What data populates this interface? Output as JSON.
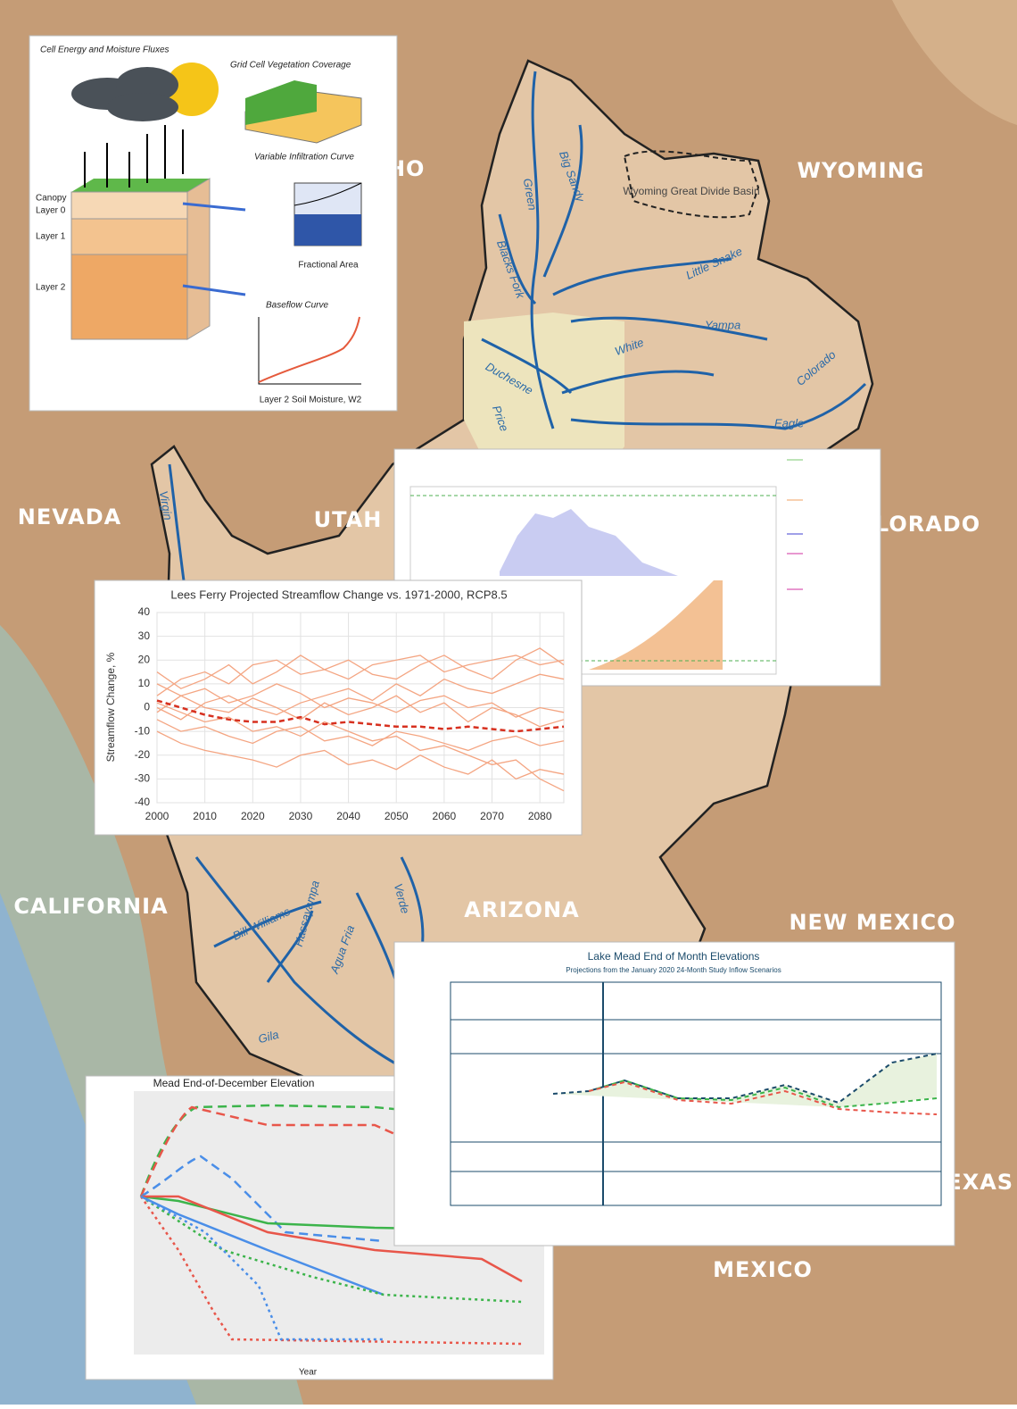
{
  "map": {
    "states": [
      "WYOMING",
      "IDAHO",
      "NEVADA",
      "UTAH",
      "COLORADO",
      "CALIFORNIA",
      "ARIZONA",
      "NEW MEXICO",
      "TEXAS",
      "MEXICO"
    ],
    "basin": "Wyoming Great Divide Basin",
    "rivers": [
      "Green",
      "Big Sandy",
      "Blacks Fork",
      "Little Snake",
      "Yampa",
      "White",
      "Duchesne",
      "Price",
      "Colorado",
      "Eagle",
      "Virgin",
      "Verde",
      "Bill Williams",
      "Hassayampa",
      "Agua Fria",
      "Gila"
    ]
  },
  "diagram": {
    "title": "Cell Energy and Moisture Fluxes",
    "vegetation": "Grid Cell Vegetation Coverage",
    "infiltration": "Variable Infiltration Curve",
    "baseflow": "Baseflow Curve",
    "canopy": "Canopy",
    "layer0": "Layer 0",
    "layer1": "Layer 1",
    "layer2": "Layer 2",
    "fractional_area": "Fractional Area",
    "soil_moisture": "Layer 2 Soil Moisture, W2"
  },
  "figures": {
    "mead_december": {
      "title": "Mead End-of-December Elevation",
      "xlabel": "Year"
    },
    "mead_month": {
      "title": "Lake Mead End of Month Elevations",
      "subtitle": "Projections from the January 2020 24-Month Study Inflow Scenarios"
    }
  },
  "chart_data": {
    "type": "line",
    "title": "Lees Ferry Projected Streamflow Change vs. 1971-2000, RCP8.5",
    "ylabel": "Streamflow Change, %",
    "x": [
      2000,
      2005,
      2010,
      2015,
      2020,
      2025,
      2030,
      2035,
      2040,
      2045,
      2050,
      2055,
      2060,
      2065,
      2070,
      2075,
      2080,
      2085
    ],
    "xlim": [
      2000,
      2085
    ],
    "xticks": [
      2000,
      2010,
      2020,
      2030,
      2040,
      2050,
      2060,
      2070,
      2080
    ],
    "ylim": [
      -40,
      40
    ],
    "yticks": [
      -40,
      -30,
      -20,
      -10,
      0,
      10,
      20,
      30,
      40
    ],
    "grid": true,
    "series": [
      {
        "color": "#f4a582",
        "values": [
          5,
          12,
          15,
          10,
          18,
          20,
          14,
          16,
          12,
          18,
          20,
          22,
          15,
          18,
          20,
          22,
          18,
          20
        ]
      },
      {
        "color": "#f4a582",
        "values": [
          0,
          -5,
          2,
          5,
          0,
          -3,
          2,
          5,
          8,
          3,
          10,
          5,
          12,
          8,
          6,
          10,
          14,
          12
        ]
      },
      {
        "color": "#f4a582",
        "values": [
          -5,
          -10,
          -8,
          -12,
          -15,
          -10,
          -8,
          -14,
          -12,
          -16,
          -10,
          -12,
          -15,
          -18,
          -14,
          -12,
          -16,
          -14
        ]
      },
      {
        "color": "#f4a582",
        "values": [
          10,
          5,
          8,
          2,
          5,
          10,
          6,
          0,
          4,
          2,
          -2,
          3,
          5,
          0,
          2,
          -4,
          0,
          -2
        ]
      },
      {
        "color": "#f4a582",
        "values": [
          -10,
          -15,
          -18,
          -20,
          -22,
          -25,
          -20,
          -18,
          -24,
          -22,
          -26,
          -20,
          -25,
          -28,
          -22,
          -30,
          -26,
          -28
        ]
      },
      {
        "color": "#f4a582",
        "values": [
          2,
          -2,
          -6,
          -4,
          -10,
          -8,
          -12,
          -6,
          -10,
          -14,
          -12,
          -18,
          -16,
          -20,
          -24,
          -22,
          -30,
          -35
        ]
      },
      {
        "color": "#f4a582",
        "values": [
          -2,
          5,
          0,
          -2,
          4,
          0,
          -5,
          2,
          -3,
          0,
          5,
          -2,
          2,
          -6,
          0,
          -3,
          -8,
          -5
        ]
      },
      {
        "color": "#f4a582",
        "values": [
          15,
          8,
          12,
          18,
          10,
          15,
          22,
          16,
          20,
          14,
          12,
          18,
          22,
          16,
          12,
          20,
          25,
          18
        ]
      },
      {
        "color": "#d7301f",
        "dashed": true,
        "values": [
          3,
          0,
          -3,
          -5,
          -6,
          -6,
          -4,
          -7,
          -6,
          -7,
          -8,
          -8,
          -9,
          -8,
          -9,
          -10,
          -9,
          -8
        ]
      }
    ]
  }
}
